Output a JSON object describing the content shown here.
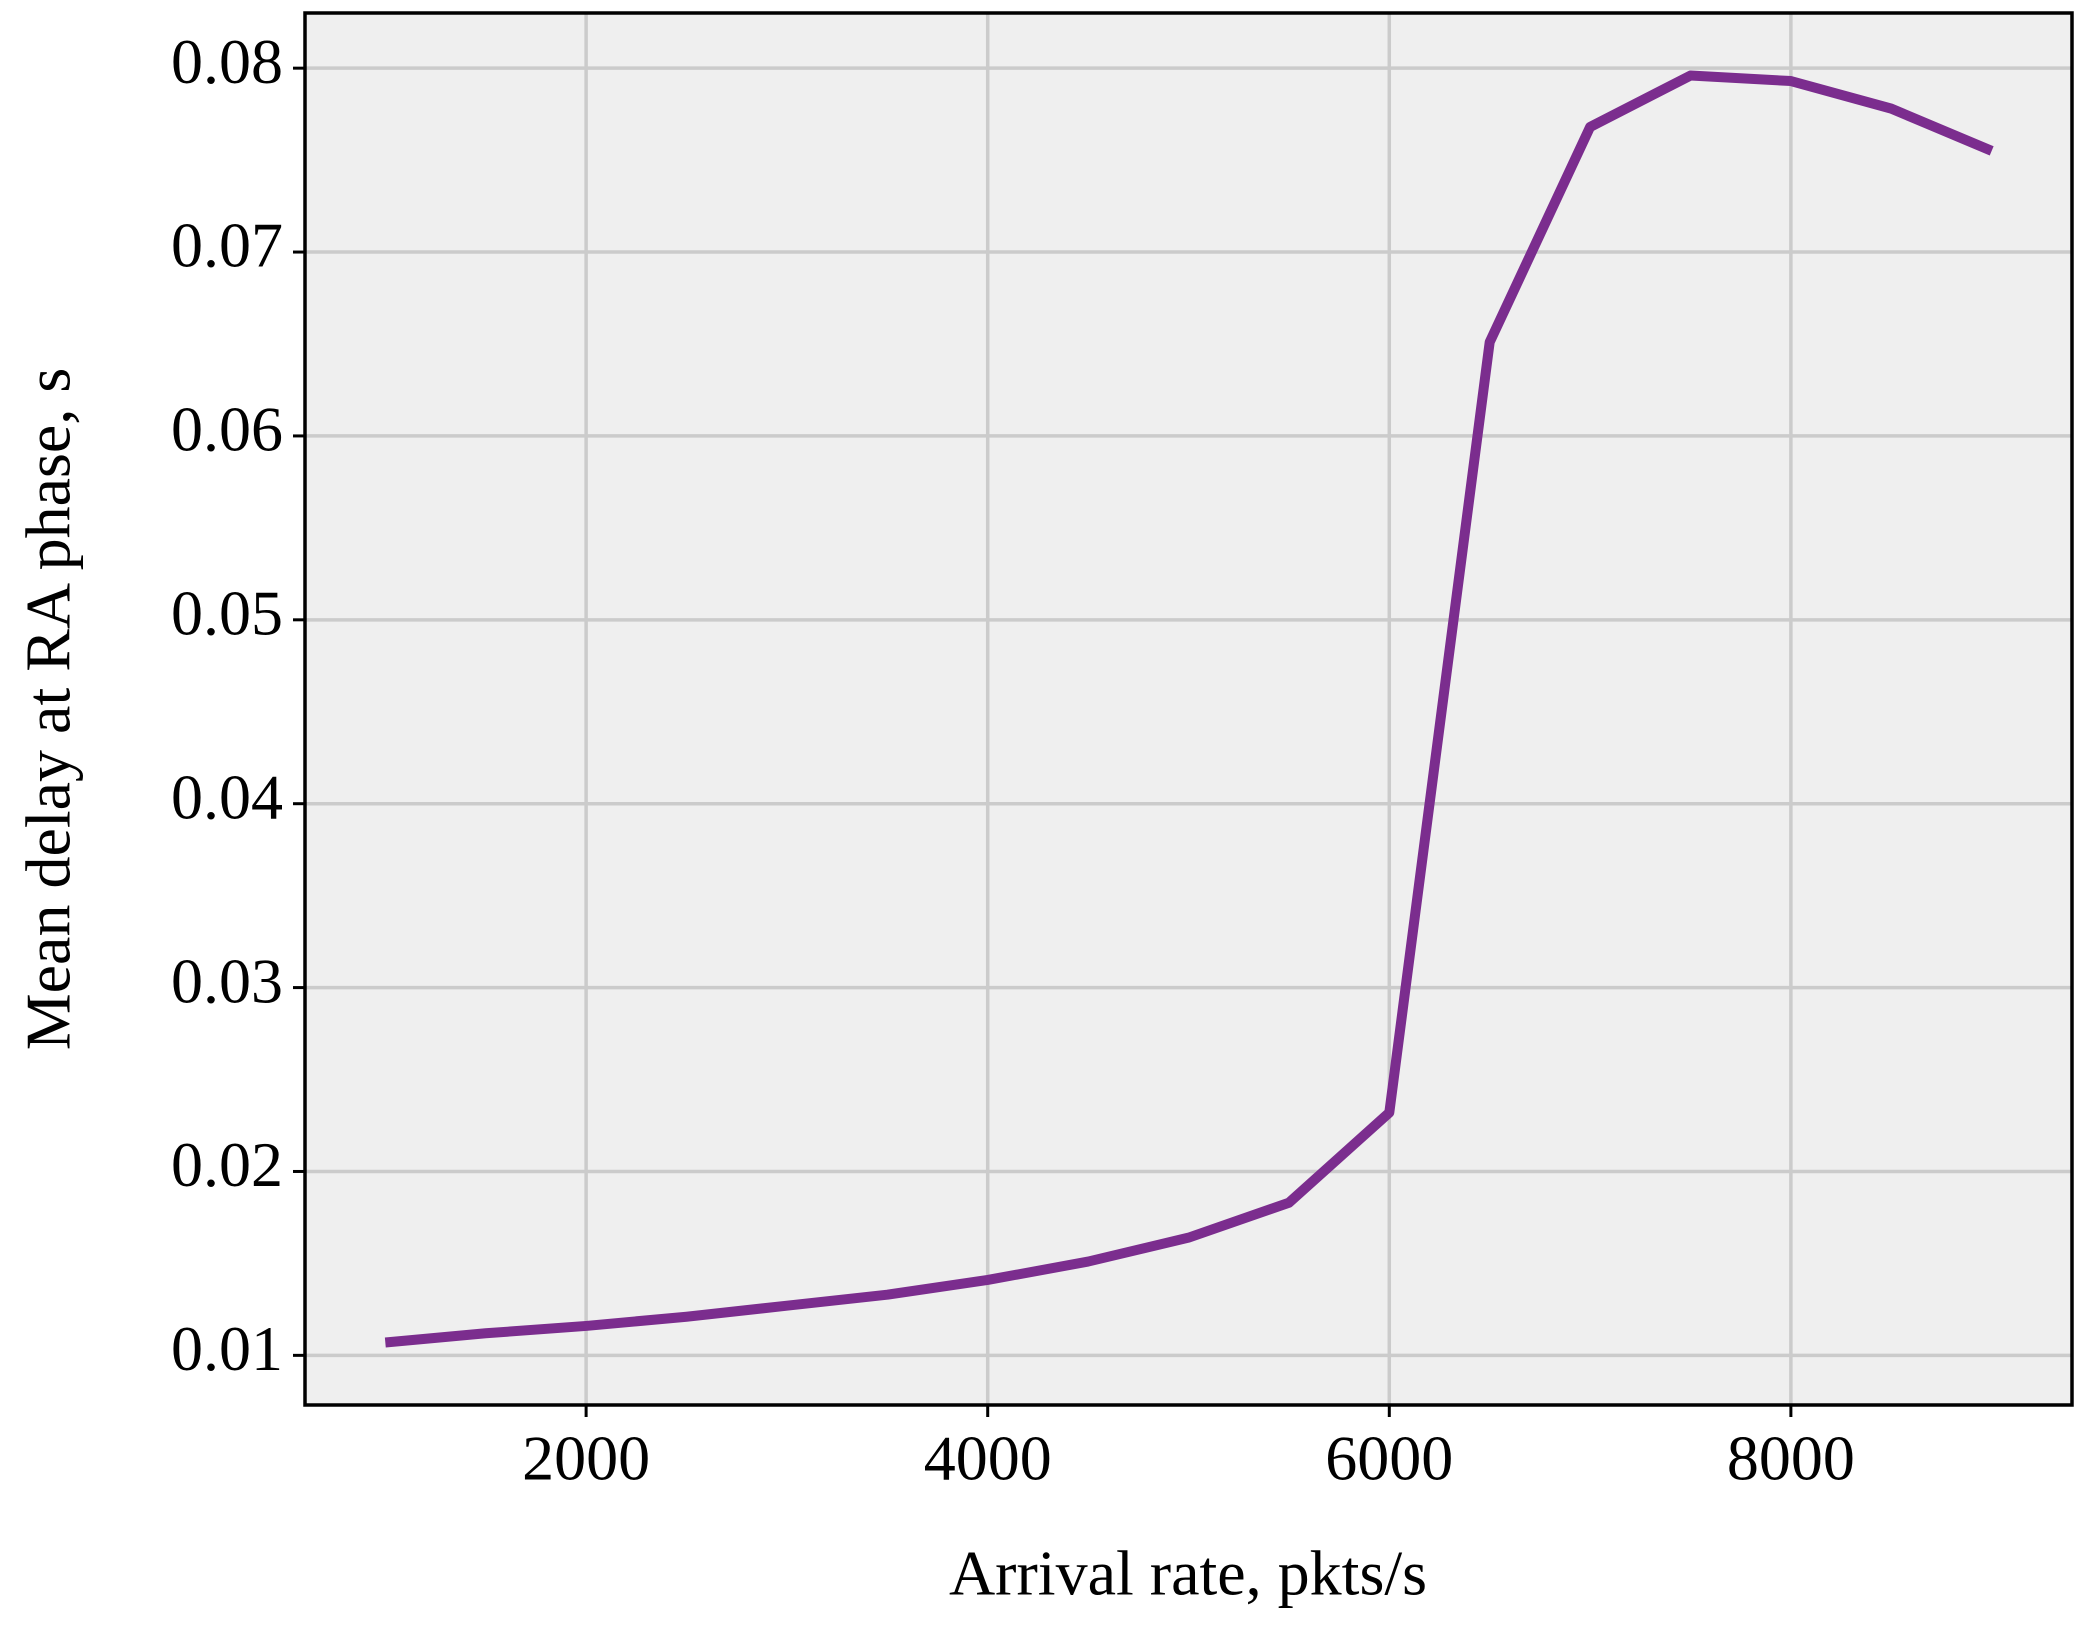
{
  "chart_data": {
    "type": "line",
    "x_label": "Arrival rate, pkts/s",
    "y_label": "Mean delay at RA phase, s",
    "x": [
      1000,
      1500,
      2000,
      2500,
      3000,
      3500,
      4000,
      4500,
      5000,
      5500,
      6000,
      6500,
      7000,
      7500,
      8000,
      8500,
      9000
    ],
    "series": [
      {
        "name": "Mean delay",
        "color": "#7b2d8e",
        "values": [
          0.0107,
          0.0112,
          0.0116,
          0.0121,
          0.0127,
          0.0133,
          0.0141,
          0.0151,
          0.0164,
          0.0183,
          0.0232,
          0.0651,
          0.0768,
          0.0796,
          0.0793,
          0.0778,
          0.0755
        ]
      }
    ],
    "xlim": [
      600,
      9400
    ],
    "xticks": [
      2000,
      4000,
      6000,
      8000
    ],
    "ylim": [
      0.0073,
      0.083
    ],
    "yticks": [
      0.01,
      0.02,
      0.03,
      0.04,
      0.05,
      0.06,
      0.07,
      0.08
    ],
    "grid": true,
    "background": "#efefef"
  }
}
